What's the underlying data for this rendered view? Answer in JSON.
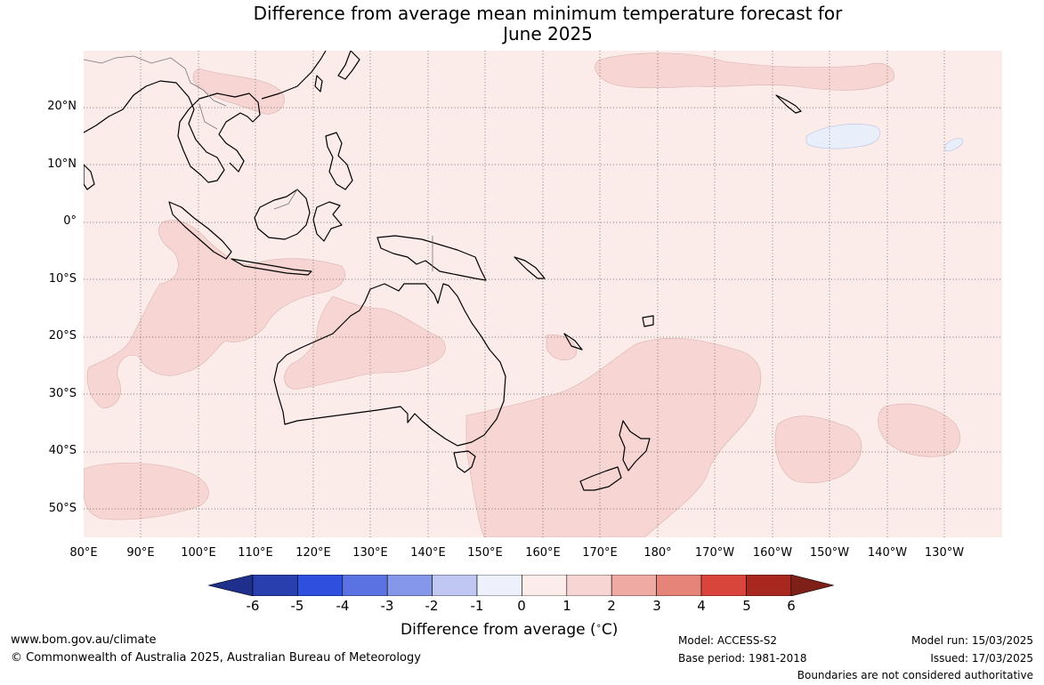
{
  "title_line1": "Difference from average mean minimum temperature forecast for",
  "title_line2": "June 2025",
  "lat_ticks": [
    "20°N",
    "10°N",
    "0°",
    "10°S",
    "20°S",
    "30°S",
    "40°S",
    "50°S"
  ],
  "lon_ticks": [
    "80°E",
    "90°E",
    "100°E",
    "110°E",
    "120°E",
    "130°E",
    "140°E",
    "150°E",
    "160°E",
    "170°E",
    "180°",
    "170°W",
    "160°W",
    "150°W",
    "140°W",
    "130°W"
  ],
  "colorbar": {
    "ticks": [
      "-6",
      "-5",
      "-4",
      "-3",
      "-2",
      "-1",
      "0",
      "1",
      "2",
      "3",
      "4",
      "5",
      "6"
    ],
    "colors": [
      "#1e2f8c",
      "#2a3fae",
      "#2f50de",
      "#5b73e2",
      "#8597e8",
      "#c0c8f2",
      "#eef0fb",
      "#fcecea",
      "#f6d5d3",
      "#eeaaa3",
      "#e6847a",
      "#d9453a",
      "#a8271f",
      "#7e1f18"
    ],
    "label": "Difference from average (∘C)",
    "label_text": "Difference from average (",
    "label_unit": "C)"
  },
  "map_fill_colors": {
    "background": "#fbebe9",
    "above_1": "#f6d5d3",
    "below_0": "#e9eefb"
  },
  "footer": {
    "site": "www.bom.gov.au/climate",
    "copyright": "© Commonwealth of Australia 2025, Australian Bureau of Meteorology",
    "model": "Model: ACCESS-S2",
    "base_period": "Base period: 1981-2018",
    "model_run": "Model run: 15/03/2025",
    "issued": "Issued: 17/03/2025",
    "disclaimer": "Boundaries are not considered authoritative"
  }
}
